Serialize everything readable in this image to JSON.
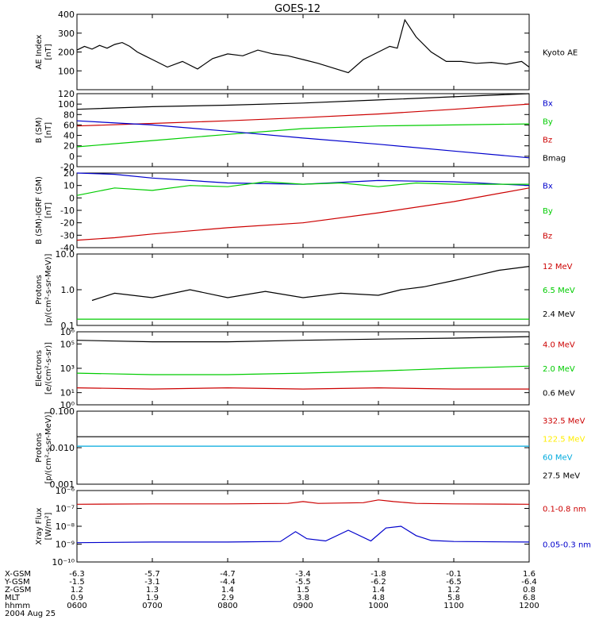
{
  "title": "GOES-12",
  "colors": {
    "black": "#000000",
    "red": "#cc0000",
    "green": "#00cc00",
    "blue": "#0000cc",
    "yellow": "#ffee00",
    "cyan": "#00aadd"
  },
  "chart_data": [
    {
      "type": "line",
      "scale": "linear",
      "ylabel": [
        "AE Index",
        "[nT]"
      ],
      "ylim": [
        0,
        400
      ],
      "ticks": [
        100,
        200,
        300,
        400
      ],
      "legend": [
        {
          "label": "Kyoto AE",
          "color": "black"
        }
      ],
      "series": [
        {
          "color": "black",
          "x": [
            0,
            0.1,
            0.2,
            0.3,
            0.4,
            0.5,
            0.6,
            0.7,
            0.8,
            0.9,
            1.0,
            1.2,
            1.4,
            1.6,
            1.8,
            2.0,
            2.2,
            2.4,
            2.6,
            2.8,
            3.0,
            3.2,
            3.4,
            3.6,
            3.8,
            4.0,
            4.15,
            4.25,
            4.35,
            4.5,
            4.7,
            4.9,
            5.1,
            5.3,
            5.5,
            5.7,
            5.9,
            6.0
          ],
          "y": [
            210,
            230,
            215,
            235,
            220,
            240,
            250,
            230,
            200,
            180,
            160,
            120,
            150,
            110,
            165,
            190,
            180,
            210,
            190,
            180,
            160,
            140,
            115,
            90,
            160,
            200,
            230,
            220,
            370,
            280,
            200,
            150,
            150,
            140,
            145,
            135,
            150,
            120
          ]
        }
      ]
    },
    {
      "type": "line",
      "scale": "linear",
      "ylabel": [
        "B (SM)",
        "[nT]"
      ],
      "ylim": [
        -20,
        120
      ],
      "ticks": [
        -20,
        0,
        20,
        40,
        60,
        80,
        100,
        120
      ],
      "legend": [
        {
          "label": "Bx",
          "color": "blue"
        },
        {
          "label": "By",
          "color": "green"
        },
        {
          "label": "Bz",
          "color": "red"
        },
        {
          "label": "Bmag",
          "color": "black"
        }
      ],
      "series": [
        {
          "color": "black",
          "x": [
            0,
            1,
            2,
            3,
            4,
            5,
            6
          ],
          "y": [
            90,
            95,
            98,
            102,
            108,
            114,
            120
          ]
        },
        {
          "color": "red",
          "x": [
            0,
            1,
            2,
            3,
            4,
            5,
            6
          ],
          "y": [
            58,
            63,
            68,
            74,
            81,
            90,
            100
          ]
        },
        {
          "color": "green",
          "x": [
            0,
            1,
            2,
            3,
            4,
            5,
            6
          ],
          "y": [
            18,
            30,
            42,
            53,
            58,
            60,
            62
          ]
        },
        {
          "color": "blue",
          "x": [
            0,
            1,
            2,
            3,
            4,
            5,
            6
          ],
          "y": [
            68,
            60,
            48,
            35,
            23,
            10,
            -3
          ]
        }
      ]
    },
    {
      "type": "line",
      "scale": "linear",
      "ylabel": [
        "B (SM)-IGRF (SM)",
        "[nT]"
      ],
      "ylim": [
        -40,
        20
      ],
      "ticks": [
        -40,
        -30,
        -20,
        -10,
        0,
        10,
        20
      ],
      "legend": [
        {
          "label": "Bx",
          "color": "blue"
        },
        {
          "label": "By",
          "color": "green"
        },
        {
          "label": "Bz",
          "color": "red"
        }
      ],
      "series": [
        {
          "color": "blue",
          "x": [
            0,
            0.5,
            1,
            2,
            3,
            4,
            5,
            6
          ],
          "y": [
            20,
            19,
            16,
            12,
            11,
            14,
            13,
            10
          ]
        },
        {
          "color": "green",
          "x": [
            0,
            0.5,
            1,
            1.5,
            2,
            2.5,
            3,
            3.5,
            4,
            4.5,
            5,
            6
          ],
          "y": [
            2,
            8,
            6,
            10,
            9,
            13,
            11,
            12,
            9,
            12,
            11,
            11
          ]
        },
        {
          "color": "red",
          "x": [
            0,
            0.5,
            1,
            2,
            3,
            4,
            5,
            6
          ],
          "y": [
            -34,
            -32,
            -29,
            -24,
            -20,
            -12,
            -3,
            8
          ]
        }
      ]
    },
    {
      "type": "line",
      "scale": "log",
      "ylabel": [
        "Protons",
        "[p/(cm²-s-sr-MeV)]"
      ],
      "ylim": [
        0.1,
        10
      ],
      "ticks": [
        0.1,
        1.0,
        10.0
      ],
      "tick_labels": [
        "0.1",
        "1.0",
        "10.0"
      ],
      "legend": [
        {
          "label": "12 MeV",
          "color": "red"
        },
        {
          "label": "6.5 MeV",
          "color": "green"
        },
        {
          "label": "2.4 MeV",
          "color": "black"
        }
      ],
      "series": [
        {
          "color": "black",
          "x": [
            0.2,
            0.5,
            1,
            1.5,
            2,
            2.5,
            3,
            3.5,
            4,
            4.3,
            4.6,
            5,
            5.3,
            5.6,
            6
          ],
          "y": [
            0.5,
            0.8,
            0.6,
            1.0,
            0.6,
            0.9,
            0.6,
            0.8,
            0.7,
            1.0,
            1.2,
            1.8,
            2.5,
            3.5,
            4.5
          ]
        },
        {
          "color": "green",
          "x": [
            0,
            6
          ],
          "y": [
            0.15,
            0.15
          ]
        }
      ]
    },
    {
      "type": "line",
      "scale": "log",
      "ylabel": [
        "Electrons",
        "[e/(cm²-s-sr)]"
      ],
      "ylim": [
        1,
        1000000
      ],
      "ticks": [
        1,
        10,
        1000,
        100000,
        1000000
      ],
      "tick_labels": [
        "10⁰",
        "10¹",
        "10³",
        "10⁵",
        "10⁶"
      ],
      "legend": [
        {
          "label": "4.0 MeV",
          "color": "red"
        },
        {
          "label": "2.0 MeV",
          "color": "green"
        },
        {
          "label": "0.6 MeV",
          "color": "black"
        }
      ],
      "series": [
        {
          "color": "black",
          "x": [
            0,
            1,
            2,
            3,
            4,
            5,
            6
          ],
          "y": [
            200000,
            150000,
            150000,
            200000,
            250000,
            300000,
            400000
          ]
        },
        {
          "color": "green",
          "x": [
            0,
            1,
            2,
            3,
            4,
            5,
            6
          ],
          "y": [
            400,
            300,
            300,
            400,
            600,
            1000,
            1500
          ]
        },
        {
          "color": "red",
          "x": [
            0,
            1,
            2,
            3,
            4,
            5,
            6
          ],
          "y": [
            25,
            20,
            25,
            20,
            25,
            20,
            20
          ]
        }
      ]
    },
    {
      "type": "line",
      "scale": "log",
      "ylabel": [
        "Protons",
        "[p/(cm²-s-sr-MeV)]"
      ],
      "ylim": [
        0.001,
        0.1
      ],
      "ticks": [
        0.001,
        0.01,
        0.1
      ],
      "tick_labels": [
        "0.001",
        "0.010",
        "0.100"
      ],
      "legend": [
        {
          "label": "332.5 MeV",
          "color": "red"
        },
        {
          "label": "122.5 MeV",
          "color": "yellow"
        },
        {
          "label": "60 MeV",
          "color": "cyan"
        },
        {
          "label": "27.5 MeV",
          "color": "black"
        }
      ],
      "series": [
        {
          "color": "black",
          "x": [
            0,
            6
          ],
          "y": [
            0.02,
            0.02
          ]
        },
        {
          "color": "cyan",
          "x": [
            0,
            6
          ],
          "y": [
            0.011,
            0.011
          ]
        }
      ]
    },
    {
      "type": "line",
      "scale": "log",
      "ylabel": [
        "Xray Flux",
        "[W/m²]"
      ],
      "ylim": [
        1e-10,
        1e-08
      ],
      "ticks": [
        1e-10,
        1e-09,
        1e-08,
        1e-07,
        1e-06
      ],
      "tick_labels": [
        "10⁻¹⁰",
        "10⁻⁹",
        "10⁻⁸",
        "10⁻⁷",
        "10⁻⁶"
      ],
      "ylim_log": [
        -10,
        -6
      ],
      "legend": [
        {
          "label": "0.1-0.8 nm",
          "color": "red"
        },
        {
          "label": "0.05-0.3 nm",
          "color": "blue"
        }
      ],
      "series": [
        {
          "color": "red",
          "x": [
            0,
            1,
            2,
            2.8,
            3.0,
            3.2,
            3.8,
            4.0,
            4.2,
            4.5,
            5,
            6
          ],
          "y": [
            1.7e-07,
            1.8e-07,
            1.8e-07,
            1.9e-07,
            2.4e-07,
            1.9e-07,
            2.1e-07,
            3e-07,
            2.4e-07,
            1.9e-07,
            1.8e-07,
            1.7e-07
          ]
        },
        {
          "color": "blue",
          "x": [
            0,
            1,
            2,
            2.7,
            2.9,
            3.05,
            3.3,
            3.6,
            3.9,
            4.1,
            4.3,
            4.5,
            4.7,
            5,
            6
          ],
          "y": [
            1.2e-09,
            1.3e-09,
            1.3e-09,
            1.4e-09,
            5e-09,
            2e-09,
            1.5e-09,
            6e-09,
            1.5e-09,
            8e-09,
            1e-08,
            3e-09,
            1.6e-09,
            1.4e-09,
            1.3e-09
          ]
        }
      ]
    }
  ],
  "x_axis": {
    "rows": [
      {
        "label": "X-GSM",
        "values": [
          "-6.3",
          "-5.7",
          "-4.7",
          "-3.4",
          "-1.8",
          "-0.1",
          "1.6"
        ]
      },
      {
        "label": "Y-GSM",
        "values": [
          "-1.5",
          "-3.1",
          "-4.4",
          "-5.5",
          "-6.2",
          "-6.5",
          "-6.4"
        ]
      },
      {
        "label": "Z-GSM",
        "values": [
          "1.2",
          "1.3",
          "1.4",
          "1.5",
          "1.4",
          "1.2",
          "0.8"
        ]
      },
      {
        "label": "MLT",
        "values": [
          "0.9",
          "1.9",
          "2.9",
          "3.8",
          "4.8",
          "5.8",
          "6.8"
        ]
      },
      {
        "label": "hhmm",
        "values": [
          "0600",
          "0700",
          "0800",
          "0900",
          "1000",
          "1100",
          "1200"
        ]
      }
    ],
    "date": "2004 Aug 25"
  }
}
